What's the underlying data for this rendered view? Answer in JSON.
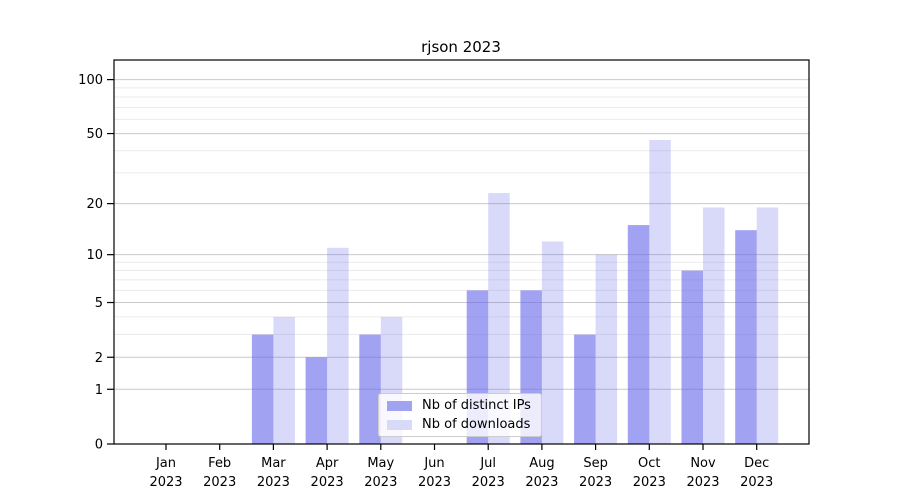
{
  "chart_data": {
    "type": "bar",
    "title": "rjson 2023",
    "categories": [
      "Jan",
      "Feb",
      "Mar",
      "Apr",
      "May",
      "Jun",
      "Jul",
      "Aug",
      "Sep",
      "Oct",
      "Nov",
      "Dec"
    ],
    "year_label": "2023",
    "series": [
      {
        "name": "Nb of distinct IPs",
        "values": [
          0,
          0,
          3,
          2,
          3,
          0,
          6,
          6,
          3,
          15,
          8,
          14
        ],
        "color": "#a2a2f3",
        "fill_alpha": 0.62
      },
      {
        "name": "Nb of downloads",
        "values": [
          0,
          0,
          4,
          11,
          4,
          0,
          23,
          12,
          10,
          46,
          19,
          19
        ],
        "color": "#d9d9fa",
        "fill_alpha": 0.25
      }
    ],
    "bar_base_color": "#6969ec",
    "xlabel": "",
    "ylabel": "",
    "yscale": "log1p",
    "ylim": [
      0,
      131
    ],
    "yticks": [
      0,
      1,
      2,
      5,
      10,
      20,
      50,
      100
    ],
    "yticks_minor": [
      3,
      4,
      6,
      7,
      8,
      9,
      30,
      40,
      60,
      70,
      80,
      90
    ],
    "grid": "horizontal",
    "legend_position": "lower center inside axes"
  },
  "colors": {
    "background": "#ffffff",
    "axis": "#000000",
    "text": "#000000",
    "grid_major": "#c9c9c9",
    "grid_minor": "#ebebeb",
    "legend_border": "#cccccc",
    "ips_bar_rendered": "#a2a2f3",
    "downloads_bar_rendered": "#d9d9fa"
  }
}
